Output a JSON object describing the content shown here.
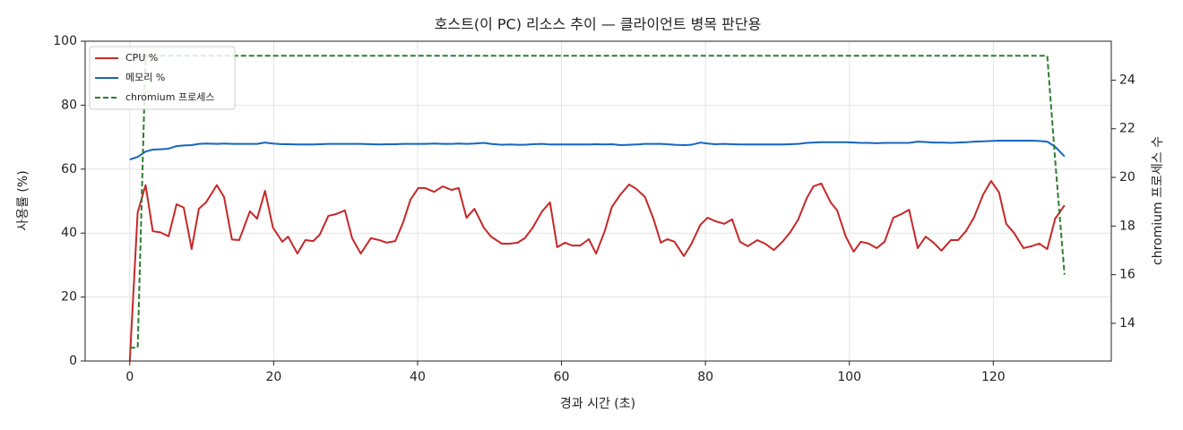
{
  "chart_data": {
    "type": "line",
    "title": "호스트(이 PC) 리소스 추이 — 클라이언트 병목 판단용",
    "x_label": "경과 시간 (초)",
    "y_label": "사용률 (%)",
    "y2_label": "chromium 프로세스 수",
    "x": [
      0,
      1.1,
      2.2,
      3.2,
      4.3,
      5.4,
      6.5,
      7.5,
      8.6,
      9.6,
      10.6,
      12.1,
      13.1,
      14.2,
      15.2,
      16.7,
      17.7,
      18.8,
      19.9,
      21.2,
      22,
      23.3,
      24.4,
      25.5,
      26.4,
      27.6,
      28.6,
      29.9,
      30.9,
      32.1,
      33.5,
      34.7,
      35.7,
      36.9,
      38,
      39,
      40.1,
      41,
      42.3,
      43.5,
      44.7,
      45.7,
      46.8,
      47.9,
      49.2,
      50.2,
      51.7,
      52.8,
      53.9,
      54.9,
      56,
      57.3,
      58.4,
      59.4,
      60.5,
      61.5,
      62.6,
      63.8,
      64.8,
      66,
      67,
      68.2,
      69.4,
      70.4,
      71.6,
      72.8,
      73.8,
      74.7,
      75.7,
      77,
      78,
      79.3,
      80.3,
      81.4,
      82.6,
      83.7,
      84.8,
      85.9,
      87.2,
      88.3,
      89.5,
      90.7,
      91.8,
      92.9,
      94.1,
      95,
      96.1,
      97.4,
      98.3,
      99.5,
      100.6,
      101.6,
      102.7,
      103.8,
      104.9,
      106.1,
      107.2,
      108.3,
      109.5,
      110.6,
      111.7,
      112.8,
      114.1,
      115.1,
      116.2,
      117.3,
      118.6,
      119.7,
      120.8,
      121.8,
      122.9,
      124.2,
      125.3,
      126.4,
      127.5,
      128.6,
      129.9
    ],
    "series": [
      {
        "name": "CPU %",
        "color": "#c62828",
        "linestyle": "solid",
        "values": [
          0,
          46.5,
          55,
          40.6,
          40.2,
          39,
          49,
          48,
          35,
          47.6,
          49.6,
          55,
          51.3,
          38,
          37.8,
          46.8,
          44.5,
          53.2,
          41.7,
          37.3,
          38.9,
          33.6,
          37.8,
          37.5,
          39.5,
          45.4,
          45.9,
          47.1,
          38.4,
          33.6,
          38.4,
          37.8,
          37,
          37.5,
          43.4,
          50.4,
          54.1,
          54.1,
          52.9,
          54.6,
          53.5,
          54.1,
          44.8,
          47.6,
          41.7,
          38.9,
          36.7,
          36.7,
          37,
          38.4,
          41.7,
          46.8,
          49.6,
          35.6,
          37,
          36.1,
          36.1,
          38.1,
          33.6,
          40.6,
          48.2,
          52.1,
          55.2,
          53.8,
          51.3,
          44.3,
          37,
          38.1,
          37.3,
          32.8,
          36.4,
          42.6,
          44.8,
          43.7,
          42.9,
          44.3,
          37.3,
          35.9,
          37.8,
          36.7,
          34.7,
          37.3,
          40.3,
          44.3,
          51,
          54.6,
          55.5,
          49.6,
          47.1,
          38.9,
          34.2,
          37.3,
          36.7,
          35.3,
          37.3,
          44.8,
          45.9,
          47.3,
          35.3,
          38.9,
          37,
          34.5,
          37.8,
          37.8,
          40.6,
          44.8,
          52.1,
          56.3,
          52.7,
          42.9,
          40,
          35.3,
          35.9,
          36.7,
          35,
          44.5,
          48.7
        ]
      },
      {
        "name": "메모리 %",
        "color": "#1565c0",
        "linestyle": "solid",
        "values": [
          63,
          63.8,
          65.5,
          66.1,
          66.2,
          66.4,
          67.2,
          67.4,
          67.5,
          67.9,
          68,
          67.9,
          68,
          67.9,
          67.9,
          67.9,
          67.9,
          68.3,
          68,
          67.8,
          67.8,
          67.7,
          67.7,
          67.7,
          67.8,
          67.9,
          67.9,
          67.9,
          67.9,
          67.9,
          67.8,
          67.7,
          67.8,
          67.8,
          67.9,
          67.9,
          67.9,
          67.9,
          68,
          67.9,
          67.9,
          68,
          67.9,
          68,
          68.2,
          67.9,
          67.6,
          67.7,
          67.6,
          67.6,
          67.8,
          67.9,
          67.7,
          67.7,
          67.7,
          67.7,
          67.7,
          67.7,
          67.8,
          67.7,
          67.8,
          67.5,
          67.6,
          67.7,
          67.9,
          67.9,
          67.9,
          67.8,
          67.6,
          67.5,
          67.6,
          68.3,
          68,
          67.8,
          67.9,
          67.8,
          67.7,
          67.7,
          67.7,
          67.7,
          67.7,
          67.7,
          67.8,
          67.9,
          68.2,
          68.3,
          68.4,
          68.4,
          68.4,
          68.4,
          68.3,
          68.2,
          68.2,
          68.1,
          68.2,
          68.2,
          68.2,
          68.2,
          68.6,
          68.5,
          68.3,
          68.3,
          68.2,
          68.3,
          68.4,
          68.6,
          68.7,
          68.8,
          68.9,
          68.9,
          68.9,
          68.9,
          68.9,
          68.8,
          68.6,
          67,
          64
        ]
      },
      {
        "name": "chromium 프로세스",
        "color": "#2e7d32",
        "linestyle": "dashed",
        "axis": "y2",
        "values": [
          13,
          13,
          25,
          25,
          25,
          25,
          25,
          25,
          25,
          25,
          25,
          25,
          25,
          25,
          25,
          25,
          25,
          25,
          25,
          25,
          25,
          25,
          25,
          25,
          25,
          25,
          25,
          25,
          25,
          25,
          25,
          25,
          25,
          25,
          25,
          25,
          25,
          25,
          25,
          25,
          25,
          25,
          25,
          25,
          25,
          25,
          25,
          25,
          25,
          25,
          25,
          25,
          25,
          25,
          25,
          25,
          25,
          25,
          25,
          25,
          25,
          25,
          25,
          25,
          25,
          25,
          25,
          25,
          25,
          25,
          25,
          25,
          25,
          25,
          25,
          25,
          25,
          25,
          25,
          25,
          25,
          25,
          25,
          25,
          25,
          25,
          25,
          25,
          25,
          25,
          25,
          25,
          25,
          25,
          25,
          25,
          25,
          25,
          25,
          25,
          25,
          25,
          25,
          25,
          25,
          25,
          25,
          25,
          25,
          25,
          25,
          25,
          25,
          25,
          25,
          20.7,
          16
        ]
      }
    ],
    "xlim": [
      -6.2,
      136.4
    ],
    "xticks": [
      0,
      20,
      40,
      60,
      80,
      100,
      120
    ],
    "ylim": [
      0,
      100
    ],
    "yticks": [
      0,
      20,
      40,
      60,
      80,
      100
    ],
    "y2lim": [
      12.45,
      25.6
    ],
    "y2ticks": [
      14,
      16,
      18,
      20,
      22,
      24
    ],
    "grid": true,
    "legend": "upper-left"
  }
}
